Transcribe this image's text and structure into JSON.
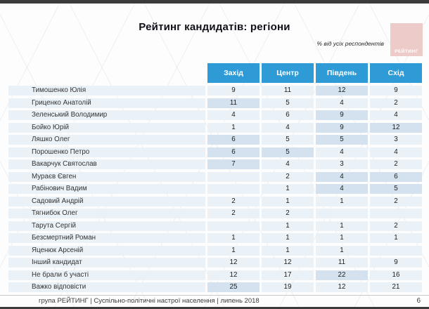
{
  "page": {
    "title": "Рейтинг кандидатів: регіони",
    "subtitle": "% від усіх респондентів",
    "logo_text": "РЕЙТИНГ",
    "footer": "група РЕЙТИНГ |  Суспільно-політичні настрої населення |  липень 2018",
    "page_number": "6"
  },
  "colors": {
    "header_blue": "#2e9bd6",
    "row_blue": "#eaf2f8",
    "highlight_blue": "#d3e2ee",
    "logo_pink": "#edcbc9",
    "top_bar": "#3b3b3b"
  },
  "chart_data": {
    "type": "table",
    "title": "Рейтинг кандидатів: регіони",
    "note": "% від усіх респондентів",
    "columns": [
      "Захід",
      "Центр",
      "Південь",
      "Схід"
    ],
    "highlight_meaning": "darker cell background marks region(s) of highest support in the row",
    "rows": [
      {
        "label": "Тимошенко Юлія",
        "values": [
          "9",
          "11",
          "12",
          "9"
        ],
        "highlight": [
          2
        ]
      },
      {
        "label": "Гриценко Анатолій",
        "values": [
          "11",
          "5",
          "4",
          "2"
        ],
        "highlight": [
          0
        ]
      },
      {
        "label": "Зеленський Володимир",
        "values": [
          "4",
          "6",
          "9",
          "4"
        ],
        "highlight": [
          2
        ]
      },
      {
        "label": "Бойко Юрій",
        "values": [
          "1",
          "4",
          "9",
          "12"
        ],
        "highlight": [
          2,
          3
        ]
      },
      {
        "label": "Ляшко Олег",
        "values": [
          "6",
          "5",
          "5",
          "3"
        ],
        "highlight": [
          0,
          2
        ]
      },
      {
        "label": "Порошенко Петро",
        "values": [
          "6",
          "5",
          "4",
          "4"
        ],
        "highlight": [
          0,
          1
        ]
      },
      {
        "label": "Вакарчук Святослав",
        "values": [
          "7",
          "4",
          "3",
          "2"
        ],
        "highlight": [
          0
        ]
      },
      {
        "label": "Мураєв Євген",
        "values": [
          "",
          "2",
          "4",
          "6"
        ],
        "highlight": [
          2,
          3
        ]
      },
      {
        "label": "Рабінович Вадим",
        "values": [
          "",
          "1",
          "4",
          "5"
        ],
        "highlight": [
          2,
          3
        ]
      },
      {
        "label": "Садовий Андрій",
        "values": [
          "2",
          "1",
          "1",
          "2"
        ],
        "highlight": []
      },
      {
        "label": "Тягнибок Олег",
        "values": [
          "2",
          "2",
          "",
          ""
        ],
        "highlight": []
      },
      {
        "label": "Тарута Сергій",
        "values": [
          "",
          "1",
          "1",
          "2"
        ],
        "highlight": []
      },
      {
        "label": "Безсмертний Роман",
        "values": [
          "1",
          "1",
          "1",
          "1"
        ],
        "highlight": []
      },
      {
        "label": "Яценюк Арсеній",
        "values": [
          "1",
          "1",
          "1",
          ""
        ],
        "highlight": []
      },
      {
        "label": "Інший кандидат",
        "values": [
          "12",
          "12",
          "11",
          "9"
        ],
        "highlight": []
      },
      {
        "label": "Не брали б участі",
        "values": [
          "12",
          "17",
          "22",
          "16"
        ],
        "highlight": [
          2
        ]
      },
      {
        "label": "Важко відповісти",
        "values": [
          "25",
          "19",
          "12",
          "21"
        ],
        "highlight": [
          0
        ]
      }
    ]
  }
}
